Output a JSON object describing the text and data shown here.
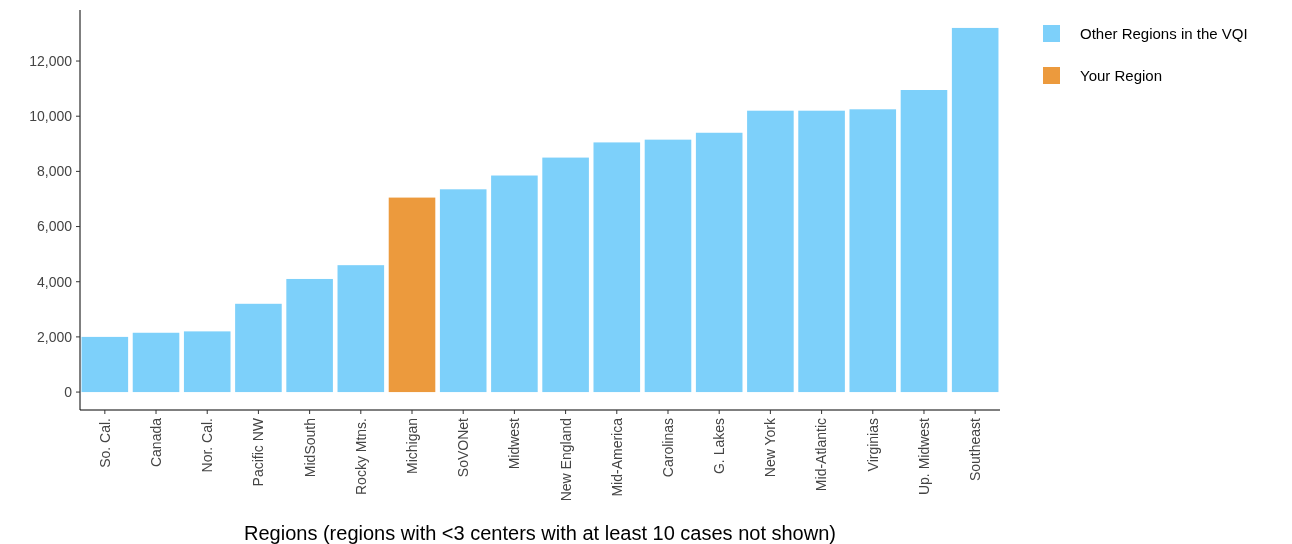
{
  "chart_data": {
    "type": "bar",
    "xlabel": "Regions (regions with <3 centers with at least 10 cases not shown)",
    "categories": [
      "So. Cal.",
      "Canada",
      "Nor. Cal.",
      "Pacific NW",
      "MidSouth",
      "Rocky Mtns.",
      "Michigan",
      "SoVONet",
      "Midwest",
      "New England",
      "Mid-America",
      "Carolinas",
      "G. Lakes",
      "New York",
      "Mid-Atlantic",
      "Virginias",
      "Up. Midwest",
      "Southeast"
    ],
    "series": [
      {
        "name": "Other Regions in the VQI",
        "color": "#7dd0fa",
        "values": [
          2000,
          2150,
          2200,
          3200,
          4100,
          4600,
          null,
          7350,
          7850,
          8500,
          9050,
          9150,
          9400,
          10200,
          10200,
          10250,
          10950,
          13200
        ]
      },
      {
        "name": "Your Region",
        "color": "#ec9a3d",
        "values": [
          null,
          null,
          null,
          null,
          null,
          null,
          7050,
          null,
          null,
          null,
          null,
          null,
          null,
          null,
          null,
          null,
          null,
          null
        ]
      }
    ],
    "stacked": true,
    "ylim": [
      -650,
      13850
    ],
    "yticks": [
      0,
      {
        "value": 2000,
        "label": "2,000"
      },
      {
        "value": 4000,
        "label": "4,000"
      },
      {
        "value": 6000,
        "label": "6,000"
      },
      {
        "value": 8000,
        "label": "8,000"
      },
      {
        "value": 10000,
        "label": "10,000"
      },
      {
        "value": 12000,
        "label": "12,000"
      }
    ],
    "grid": false,
    "legend": "right"
  }
}
